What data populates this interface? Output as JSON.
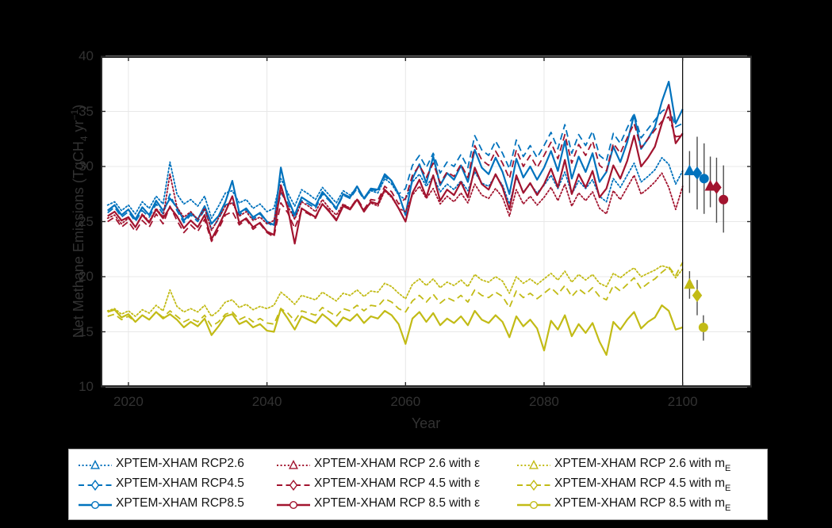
{
  "figure": {
    "background": "#000000",
    "plot_background": "#ffffff",
    "colors": {
      "blue": "#0072BD",
      "red": "#A2142F",
      "yellow": "#C2BB16",
      "grid": "#e8e8e8",
      "axis": "#262626",
      "tick_text": "#323232",
      "errorbar": "#4d4d4d",
      "vline": "#000000"
    }
  },
  "axes": {
    "xlabel": "Year",
    "ylabel_pre": "Net Methane Emissions (TgCH",
    "ylabel_sub": "4",
    "ylabel_mid": " yr",
    "ylabel_sup": "−1",
    "ylabel_post": ")"
  },
  "legend": {
    "position": "bottom",
    "items": [
      {
        "id": "rcp26",
        "color_key": "blue",
        "style": "dotted",
        "marker": "triangle",
        "text": "XPTEM-XHAM RCP2.6",
        "sub": ""
      },
      {
        "id": "rcp45",
        "color_key": "blue",
        "style": "dashed",
        "marker": "diamond",
        "text": "XPTEM-XHAM RCP4.5",
        "sub": ""
      },
      {
        "id": "rcp85",
        "color_key": "blue",
        "style": "solid",
        "marker": "circle",
        "text": "XPTEM-XHAM RCP8.5",
        "sub": ""
      },
      {
        "id": "rcp26-eps",
        "color_key": "red",
        "style": "dotted",
        "marker": "triangle",
        "text": "XPTEM-XHAM RCP 2.6 with ε",
        "sub": ""
      },
      {
        "id": "rcp45-eps",
        "color_key": "red",
        "style": "dashed",
        "marker": "diamond",
        "text": "XPTEM-XHAM RCP 4.5 with ε",
        "sub": ""
      },
      {
        "id": "rcp85-eps",
        "color_key": "red",
        "style": "solid",
        "marker": "circle",
        "text": "XPTEM-XHAM RCP 8.5 with ε",
        "sub": ""
      },
      {
        "id": "rcp26-me",
        "color_key": "yellow",
        "style": "dotted",
        "marker": "triangle",
        "text": "XPTEM-XHAM RCP 2.6 with m",
        "sub": "E"
      },
      {
        "id": "rcp45-me",
        "color_key": "yellow",
        "style": "dashed",
        "marker": "diamond",
        "text": "XPTEM-XHAM RCP 4.5 with m",
        "sub": "E"
      },
      {
        "id": "rcp85-me",
        "color_key": "yellow",
        "style": "solid",
        "marker": "circle",
        "text": "XPTEM-XHAM RCP 8.5 with m",
        "sub": "E"
      }
    ]
  },
  "chart_data": {
    "type": "line",
    "title": "",
    "xlabel": "Year",
    "ylabel": "Net Methane Emissions (TgCH4 yr-1)",
    "xlim": [
      2016,
      2110
    ],
    "ylim": [
      10,
      40
    ],
    "xticks": [
      2020,
      2040,
      2060,
      2080,
      2100
    ],
    "yticks": [
      10,
      15,
      20,
      25,
      30,
      35,
      40
    ],
    "grid": true,
    "vline_x": 2100,
    "x_start": 2017,
    "x_step": 1,
    "series": [
      {
        "id": "rcp26",
        "name": "XPTEM-XHAM RCP2.6",
        "color": "#0072BD",
        "style": "dotted",
        "values": [
          26.5,
          26.8,
          26.0,
          26.5,
          25.7,
          26.8,
          26.2,
          27.3,
          26.6,
          30.4,
          27.5,
          26.6,
          27.0,
          26.4,
          27.3,
          25.3,
          26.4,
          27.6,
          27.8,
          26.7,
          27.0,
          26.2,
          26.6,
          25.9,
          26.2,
          28.9,
          27.6,
          26.4,
          27.9,
          27.5,
          27.0,
          28.1,
          27.4,
          26.7,
          27.8,
          27.4,
          28.1,
          27.1,
          27.8,
          27.6,
          28.9,
          28.4,
          27.4,
          27.0,
          28.6,
          29.3,
          28.2,
          29.1,
          27.7,
          28.4,
          27.9,
          28.7,
          27.8,
          29.5,
          28.5,
          28.2,
          29.2,
          28.3,
          26.6,
          29.0,
          27.7,
          28.4,
          27.6,
          28.3,
          29.2,
          28.0,
          29.5,
          27.5,
          28.7,
          28.0,
          28.8,
          27.3,
          26.8,
          28.9,
          28.1,
          29.2,
          30.3,
          28.6,
          29.1,
          29.7,
          30.8,
          30.2,
          28.4,
          29.6
        ]
      },
      {
        "id": "rcp45",
        "name": "XPTEM-XHAM RCP4.5",
        "color": "#0072BD",
        "style": "dashed",
        "values": [
          25.8,
          26.3,
          25.4,
          25.9,
          25.0,
          26.0,
          25.4,
          26.6,
          25.7,
          27.5,
          26.0,
          24.9,
          25.6,
          25.0,
          26.1,
          24.3,
          25.2,
          26.5,
          26.8,
          25.6,
          26.1,
          25.2,
          25.7,
          24.9,
          24.6,
          27.6,
          26.7,
          25.3,
          26.9,
          26.6,
          26.2,
          27.5,
          26.9,
          26.1,
          27.4,
          27.1,
          28.0,
          27.0,
          27.9,
          27.8,
          29.1,
          28.6,
          27.5,
          28.0,
          30.1,
          31.0,
          29.9,
          31.2,
          29.4,
          30.4,
          30.0,
          31.1,
          29.9,
          32.8,
          31.5,
          31.0,
          32.3,
          31.2,
          29.8,
          32.4,
          30.9,
          31.9,
          30.8,
          31.9,
          33.1,
          31.6,
          33.8,
          31.2,
          32.9,
          31.9,
          33.2,
          31.0,
          30.5,
          33.0,
          32.1,
          33.5,
          34.8,
          32.6,
          33.4,
          34.2,
          35.0,
          35.4,
          33.6,
          33.9
        ]
      },
      {
        "id": "rcp85",
        "name": "XPTEM-XHAM RCP8.5",
        "color": "#0072BD",
        "style": "solid",
        "values": [
          26.0,
          26.5,
          25.6,
          26.1,
          25.2,
          26.3,
          25.6,
          26.9,
          26.0,
          27.1,
          26.3,
          25.1,
          25.8,
          25.2,
          26.4,
          24.8,
          25.5,
          26.8,
          28.7,
          25.8,
          26.2,
          25.4,
          25.8,
          25.0,
          24.7,
          29.9,
          27.1,
          25.6,
          27.2,
          26.8,
          26.4,
          27.7,
          27.0,
          26.2,
          27.5,
          27.2,
          28.2,
          27.1,
          28.0,
          27.9,
          29.3,
          28.7,
          27.5,
          25.6,
          28.9,
          30.2,
          28.5,
          30.9,
          28.3,
          29.4,
          28.8,
          30.1,
          28.6,
          31.5,
          29.9,
          29.3,
          30.8,
          29.5,
          27.5,
          30.7,
          29.0,
          30.0,
          28.8,
          29.9,
          31.4,
          29.6,
          32.3,
          28.9,
          30.9,
          29.5,
          31.2,
          28.6,
          29.5,
          31.8,
          30.4,
          32.2,
          34.7,
          31.6,
          32.5,
          33.6,
          35.9,
          37.7,
          33.9,
          35.2
        ]
      },
      {
        "id": "rcp26-eps",
        "name": "XPTEM-XHAM RCP 2.6 with eps",
        "color": "#A2142F",
        "style": "dotted",
        "values": [
          25.3,
          25.6,
          24.8,
          25.3,
          24.5,
          25.7,
          25.0,
          26.2,
          25.4,
          29.3,
          26.3,
          25.4,
          25.9,
          25.2,
          26.2,
          24.2,
          25.3,
          26.4,
          26.7,
          25.5,
          25.9,
          25.1,
          25.4,
          24.8,
          25.1,
          27.8,
          26.4,
          25.2,
          26.8,
          26.4,
          25.9,
          27.0,
          26.2,
          25.6,
          26.6,
          26.2,
          27.0,
          26.0,
          26.7,
          26.4,
          27.8,
          27.2,
          26.2,
          25.9,
          27.4,
          28.2,
          27.1,
          28.0,
          26.6,
          27.3,
          26.8,
          27.6,
          26.7,
          28.4,
          27.4,
          27.1,
          28.0,
          27.2,
          25.5,
          27.9,
          26.6,
          27.3,
          26.5,
          27.2,
          28.1,
          26.9,
          28.4,
          26.4,
          27.6,
          26.9,
          27.7,
          26.2,
          25.7,
          27.8,
          27.0,
          28.1,
          29.2,
          27.5,
          28.0,
          28.6,
          29.4,
          28.1,
          26.1,
          28.2
        ]
      },
      {
        "id": "rcp45-eps",
        "name": "XPTEM-XHAM RCP 4.5 with eps",
        "color": "#A2142F",
        "style": "dashed",
        "values": [
          25.0,
          25.4,
          24.5,
          25.0,
          24.1,
          25.1,
          24.5,
          25.7,
          24.8,
          26.4,
          25.1,
          24.0,
          24.7,
          24.1,
          25.2,
          23.2,
          24.3,
          25.6,
          25.9,
          24.7,
          25.2,
          24.3,
          24.8,
          24.0,
          23.6,
          26.7,
          25.8,
          24.4,
          26.0,
          25.7,
          25.3,
          26.6,
          26.0,
          25.2,
          26.5,
          26.2,
          27.1,
          26.1,
          27.0,
          26.9,
          28.2,
          27.7,
          26.6,
          27.1,
          29.2,
          30.1,
          29.0,
          30.3,
          28.5,
          29.5,
          29.1,
          30.2,
          29.0,
          31.9,
          30.6,
          30.1,
          31.4,
          30.3,
          28.9,
          31.5,
          30.0,
          31.0,
          29.9,
          31.0,
          32.2,
          30.7,
          32.9,
          30.3,
          32.0,
          31.0,
          32.3,
          30.1,
          29.6,
          32.1,
          31.2,
          32.6,
          33.9,
          31.7,
          32.5,
          33.3,
          34.1,
          34.5,
          32.7,
          32.8
        ]
      },
      {
        "id": "rcp85-eps",
        "name": "XPTEM-XHAM RCP 8.5 with eps",
        "color": "#A2142F",
        "style": "solid",
        "values": [
          25.5,
          25.9,
          25.1,
          25.4,
          24.5,
          25.6,
          24.9,
          26.1,
          25.3,
          26.3,
          25.5,
          24.4,
          25.1,
          24.5,
          25.6,
          23.4,
          24.6,
          25.9,
          27.3,
          24.9,
          25.3,
          24.5,
          24.9,
          24.1,
          23.8,
          28.3,
          26.2,
          23.0,
          26.2,
          25.8,
          25.4,
          26.6,
          25.9,
          25.1,
          26.4,
          26.1,
          27.0,
          25.9,
          26.8,
          26.6,
          27.9,
          27.3,
          26.2,
          25.0,
          27.6,
          28.8,
          27.2,
          29.2,
          26.9,
          27.9,
          27.4,
          28.6,
          27.2,
          29.9,
          28.4,
          27.9,
          29.3,
          28.1,
          26.1,
          29.2,
          27.6,
          28.5,
          27.4,
          28.4,
          29.8,
          28.1,
          30.6,
          27.5,
          29.3,
          28.1,
          29.6,
          27.2,
          28.0,
          30.1,
          28.9,
          30.5,
          32.8,
          30.0,
          30.8,
          31.8,
          33.9,
          35.6,
          32.1,
          33.0
        ]
      },
      {
        "id": "rcp26-me",
        "name": "XPTEM-XHAM RCP 2.6 with mE",
        "color": "#C2BB16",
        "style": "dotted",
        "values": [
          16.9,
          17.1,
          16.6,
          16.9,
          16.4,
          17.0,
          16.7,
          17.4,
          16.9,
          18.8,
          17.3,
          16.8,
          17.1,
          16.8,
          17.4,
          16.4,
          16.9,
          17.7,
          17.9,
          17.2,
          17.5,
          17.0,
          17.3,
          17.1,
          17.4,
          18.6,
          18.1,
          17.5,
          18.3,
          18.1,
          17.9,
          18.6,
          18.2,
          17.8,
          18.5,
          18.3,
          18.8,
          18.2,
          18.7,
          18.6,
          19.4,
          19.1,
          18.5,
          18.0,
          19.3,
          19.8,
          19.2,
          19.8,
          19.0,
          19.5,
          19.2,
          19.7,
          19.1,
          20.2,
          19.7,
          19.5,
          20.0,
          19.6,
          18.5,
          20.0,
          19.4,
          19.8,
          19.3,
          19.8,
          20.3,
          19.7,
          20.5,
          19.5,
          20.2,
          19.7,
          20.2,
          19.4,
          19.1,
          20.3,
          19.9,
          20.4,
          20.8,
          20.0,
          20.3,
          20.6,
          21.0,
          20.8,
          19.9,
          20.7
        ]
      },
      {
        "id": "rcp45-me",
        "name": "XPTEM-XHAM RCP 4.5 with mE",
        "color": "#C2BB16",
        "style": "dashed",
        "values": [
          16.4,
          16.6,
          16.1,
          16.4,
          15.9,
          16.5,
          16.1,
          16.8,
          16.3,
          16.9,
          16.4,
          15.9,
          16.2,
          15.9,
          16.5,
          15.5,
          15.9,
          16.6,
          16.8,
          16.1,
          16.4,
          15.9,
          16.2,
          15.8,
          15.7,
          17.1,
          16.7,
          16.0,
          16.9,
          16.7,
          16.5,
          17.2,
          16.8,
          16.4,
          17.1,
          16.9,
          17.4,
          16.9,
          17.4,
          17.3,
          18.0,
          17.7,
          17.1,
          16.8,
          17.8,
          18.3,
          17.7,
          18.4,
          17.6,
          18.1,
          17.8,
          18.3,
          17.7,
          18.8,
          18.3,
          18.1,
          18.6,
          18.2,
          17.2,
          18.7,
          18.1,
          18.5,
          18.0,
          18.5,
          19.0,
          18.4,
          19.2,
          18.2,
          18.9,
          18.4,
          19.0,
          18.2,
          17.9,
          19.2,
          18.7,
          19.3,
          19.9,
          18.9,
          19.4,
          19.8,
          20.4,
          20.9,
          20.1,
          21.3
        ]
      },
      {
        "id": "rcp85-me",
        "name": "XPTEM-XHAM RCP 8.5 with mE",
        "color": "#C2BB16",
        "style": "solid",
        "values": [
          16.8,
          17.0,
          16.3,
          16.6,
          15.9,
          16.5,
          16.1,
          16.8,
          16.2,
          16.6,
          16.1,
          15.4,
          15.9,
          15.5,
          16.2,
          14.7,
          15.5,
          16.4,
          16.6,
          15.7,
          16.0,
          15.4,
          15.7,
          15.1,
          15.0,
          17.1,
          16.2,
          15.2,
          16.4,
          16.1,
          15.8,
          16.6,
          16.1,
          15.5,
          16.3,
          16.0,
          16.6,
          15.8,
          16.4,
          16.2,
          16.9,
          16.5,
          15.7,
          13.9,
          16.2,
          16.8,
          15.9,
          16.7,
          15.6,
          16.2,
          15.8,
          16.4,
          15.6,
          16.9,
          16.1,
          15.8,
          16.5,
          15.9,
          14.5,
          16.4,
          15.5,
          16.1,
          15.3,
          13.3,
          16.0,
          15.2,
          16.5,
          14.6,
          15.7,
          14.9,
          15.8,
          14.1,
          12.9,
          15.9,
          15.2,
          16.1,
          16.8,
          15.3,
          15.9,
          16.3,
          17.4,
          16.9,
          15.2,
          15.4
        ]
      }
    ],
    "endpoints": [
      {
        "id": "rcp26-end",
        "x": 2101.0,
        "y": 29.6,
        "lo": 27.6,
        "hi": 31.4,
        "color": "#0072BD",
        "marker": "triangle"
      },
      {
        "id": "rcp45-end",
        "x": 2102.1,
        "y": 29.4,
        "lo": 26.1,
        "hi": 32.7,
        "color": "#0072BD",
        "marker": "diamond"
      },
      {
        "id": "rcp85-end",
        "x": 2103.1,
        "y": 28.9,
        "lo": 25.7,
        "hi": 32.1,
        "color": "#0072BD",
        "marker": "circle"
      },
      {
        "id": "rcp26-eps-end",
        "x": 2104.0,
        "y": 28.2,
        "lo": 26.3,
        "hi": 30.9,
        "color": "#A2142F",
        "marker": "triangle"
      },
      {
        "id": "rcp45-eps-end",
        "x": 2104.9,
        "y": 28.1,
        "lo": 24.9,
        "hi": 30.8,
        "color": "#A2142F",
        "marker": "diamond"
      },
      {
        "id": "rcp85-eps-end",
        "x": 2105.9,
        "y": 27.0,
        "lo": 24.0,
        "hi": 30.1,
        "color": "#A2142F",
        "marker": "circle"
      },
      {
        "id": "rcp26-me-end",
        "x": 2101.0,
        "y": 19.3,
        "lo": 18.0,
        "hi": 20.5,
        "color": "#C2BB16",
        "marker": "triangle"
      },
      {
        "id": "rcp45-me-end",
        "x": 2102.1,
        "y": 18.3,
        "lo": 16.5,
        "hi": 19.7,
        "color": "#C2BB16",
        "marker": "diamond"
      },
      {
        "id": "rcp85-me-end",
        "x": 2103.0,
        "y": 15.4,
        "lo": 14.2,
        "hi": 16.5,
        "color": "#C2BB16",
        "marker": "circle"
      }
    ]
  }
}
